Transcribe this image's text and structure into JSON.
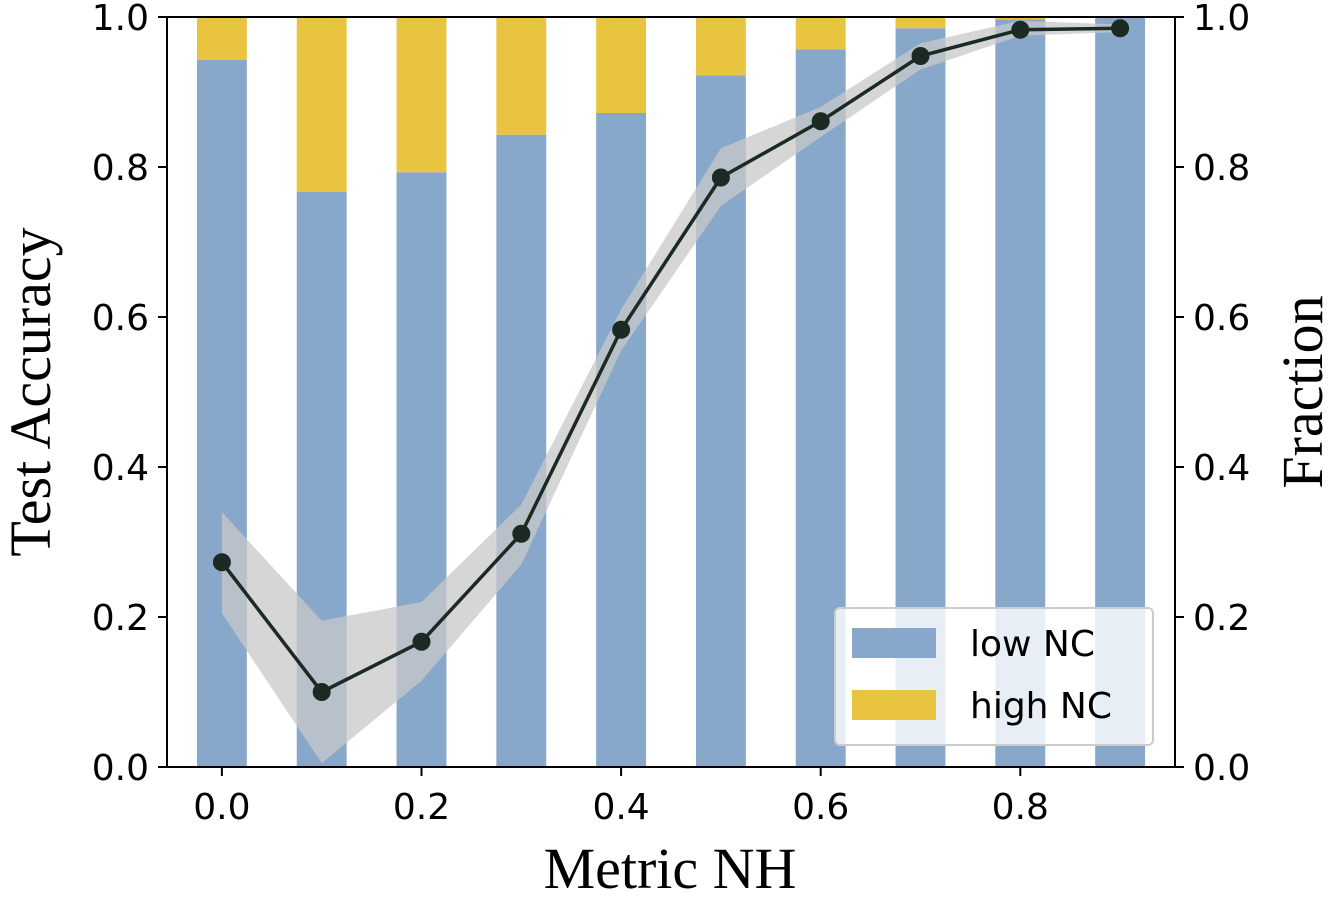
{
  "chart_data": {
    "type": "bar",
    "title": "",
    "xlabel": "Metric NH",
    "ylabel_left": "Test Accuracy",
    "ylabel_right": "Fraction",
    "x": [
      0.0,
      0.1,
      0.2,
      0.3,
      0.4,
      0.5,
      0.6,
      0.7,
      0.8,
      0.9
    ],
    "xlim": [
      -0.055,
      0.955
    ],
    "ylim": [
      0.0,
      1.0
    ],
    "x_ticks": [
      "0.0",
      "0.2",
      "0.4",
      "0.6",
      "0.8"
    ],
    "x_tick_values": [
      0.0,
      0.2,
      0.4,
      0.6,
      0.8
    ],
    "y_ticks": [
      "0.0",
      "0.2",
      "0.4",
      "0.6",
      "0.8",
      "1.0"
    ],
    "y_tick_values": [
      0.0,
      0.2,
      0.4,
      0.6,
      0.8,
      1.0
    ],
    "bar_width": 0.05,
    "series": [
      {
        "name": "low NC",
        "kind": "stacked-bar",
        "color": "#87a8cb",
        "values": [
          0.943,
          0.767,
          0.793,
          0.843,
          0.872,
          0.922,
          0.957,
          0.985,
          0.997,
          1.0
        ]
      },
      {
        "name": "high NC",
        "kind": "stacked-bar",
        "color": "#e9c440",
        "values": [
          0.057,
          0.233,
          0.207,
          0.157,
          0.128,
          0.078,
          0.043,
          0.015,
          0.003,
          0.0
        ]
      },
      {
        "name": "test accuracy",
        "kind": "line",
        "color": "#1b2a22",
        "values": [
          0.273,
          0.1,
          0.167,
          0.311,
          0.583,
          0.786,
          0.861,
          0.948,
          0.983,
          0.985
        ],
        "band_upper": [
          0.34,
          0.195,
          0.22,
          0.35,
          0.61,
          0.825,
          0.88,
          0.965,
          0.995,
          0.99
        ],
        "band_lower": [
          0.205,
          0.005,
          0.115,
          0.27,
          0.555,
          0.748,
          0.84,
          0.93,
          0.975,
          0.98
        ],
        "band_color": "#c8c8c8"
      }
    ],
    "legend": {
      "position": "lower-right",
      "entries": [
        {
          "label": "low NC",
          "color": "#87a8cb"
        },
        {
          "label": "high NC",
          "color": "#e9c440"
        }
      ]
    },
    "grid": false
  }
}
